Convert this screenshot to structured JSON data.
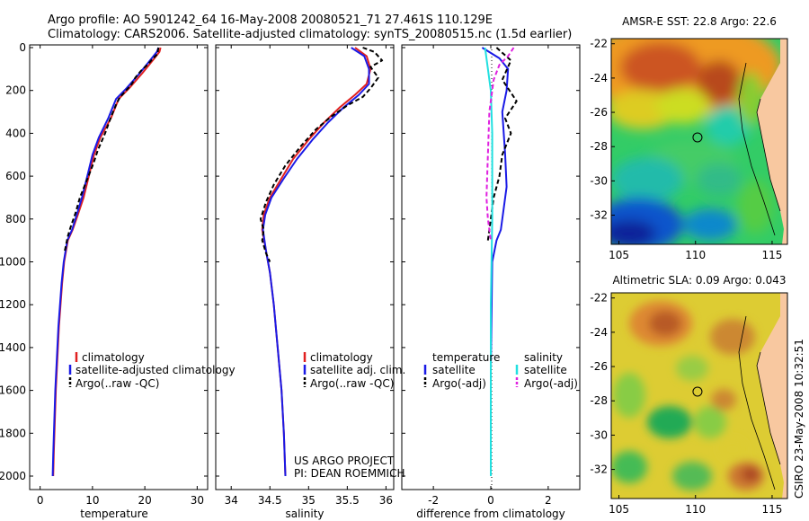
{
  "header": {
    "line1": "Argo profile: AO 5901242_64 16-May-2008 20080521_71 27.461S 110.129E",
    "line2": "Climatology: CARS2006. Satellite-adjusted climatology: synTS_20080515.nc (1.5d earlier)"
  },
  "colors": {
    "climatology": "#e02020",
    "satellite": "#1a1ae6",
    "argo": "#000000",
    "sal_satellite": "#22e0e0",
    "sal_argo": "#e020e0",
    "land": "#f8c8a0",
    "coast_band": "#e6e600"
  },
  "chart_data": [
    {
      "type": "line",
      "name": "temperature-profile",
      "xlabel": "temperature",
      "xlim": [
        -2,
        32
      ],
      "ylim": [
        2050,
        0
      ],
      "y_reversed": true,
      "xticks": [
        "0",
        "10",
        "20",
        "30"
      ],
      "xtick_values": [
        0,
        10,
        20,
        30
      ],
      "yticks": [
        "0",
        "200",
        "400",
        "600",
        "800",
        "1000",
        "1200",
        "1400",
        "1600",
        "1800",
        "2000"
      ],
      "ytick_values": [
        0,
        200,
        400,
        600,
        800,
        1000,
        1200,
        1400,
        1600,
        1800,
        2000
      ],
      "legend": [
        "climatology",
        "satellite-adjusted climatology",
        "Argo(..raw -QC)"
      ],
      "series": [
        {
          "name": "climatology",
          "color": "#e02020",
          "dash": "",
          "x": [
            23,
            22.8,
            21.5,
            19.5,
            17,
            15,
            13.5,
            11.5,
            10.3,
            9.3,
            8.3,
            7.2,
            6.2,
            5.3,
            4.6,
            4.2,
            3.6,
            3.0,
            2.6,
            2.5
          ],
          "y": [
            0,
            20,
            60,
            120,
            190,
            240,
            330,
            420,
            500,
            600,
            700,
            780,
            850,
            900,
            1000,
            1100,
            1300,
            1600,
            1900,
            2000
          ]
        },
        {
          "name": "satellite-adjusted climatology",
          "color": "#1a1ae6",
          "dash": "",
          "x": [
            22.6,
            22.3,
            21,
            19,
            16.5,
            14.5,
            13,
            11.2,
            10.0,
            9.0,
            8.0,
            7.0,
            6.1,
            5.2,
            4.5,
            4.1,
            3.5,
            2.9,
            2.5,
            2.4
          ],
          "y": [
            0,
            20,
            60,
            120,
            190,
            240,
            330,
            420,
            500,
            600,
            700,
            780,
            850,
            900,
            1000,
            1100,
            1300,
            1600,
            1900,
            2000
          ]
        },
        {
          "name": "Argo(..raw -QC)",
          "color": "#000000",
          "dash": "5,3",
          "x": [
            22.6,
            22.4,
            21.6,
            20.5,
            19.2,
            18.2,
            17.5,
            16.8,
            15.3,
            14.6,
            13.6,
            12.4,
            11.0,
            10.2,
            8.9,
            7.6,
            6.8,
            5.8,
            5.3,
            4.7
          ],
          "y": [
            0,
            30,
            50,
            80,
            110,
            140,
            170,
            190,
            230,
            260,
            320,
            400,
            480,
            540,
            620,
            700,
            770,
            840,
            880,
            950
          ]
        }
      ]
    },
    {
      "type": "line",
      "name": "salinity-profile",
      "xlabel": "salinity",
      "xlim": [
        33.8,
        36.1
      ],
      "ylim": [
        2050,
        0
      ],
      "y_reversed": true,
      "xticks": [
        "34",
        "34.5",
        "35",
        "35.5",
        "36"
      ],
      "xtick_values": [
        34,
        34.5,
        35,
        35.5,
        36
      ],
      "legend": [
        "climatology",
        "satellite adj. clim.",
        "Argo(..raw -QC)"
      ],
      "annotation": [
        "US ARGO PROJECT",
        "PI: DEAN ROEMMICH"
      ],
      "series": [
        {
          "name": "climatology",
          "color": "#e02020",
          "dash": "",
          "x": [
            35.6,
            35.75,
            35.8,
            35.75,
            35.6,
            35.4,
            35.2,
            35.0,
            34.8,
            34.65,
            34.5,
            34.42,
            34.4,
            34.45,
            34.5,
            34.55,
            34.6,
            34.65,
            34.68,
            34.7
          ],
          "y": [
            0,
            40,
            100,
            170,
            220,
            280,
            350,
            430,
            520,
            610,
            700,
            780,
            850,
            950,
            1050,
            1200,
            1400,
            1600,
            1800,
            2000
          ]
        },
        {
          "name": "satellite adj. clim.",
          "color": "#1a1ae6",
          "dash": "",
          "x": [
            35.55,
            35.72,
            35.78,
            35.78,
            35.65,
            35.45,
            35.25,
            35.05,
            34.85,
            34.68,
            34.52,
            34.44,
            34.41,
            34.45,
            34.5,
            34.55,
            34.6,
            34.65,
            34.68,
            34.7
          ],
          "y": [
            0,
            40,
            100,
            170,
            220,
            280,
            350,
            430,
            520,
            610,
            700,
            780,
            850,
            950,
            1050,
            1200,
            1400,
            1600,
            1800,
            2000
          ]
        },
        {
          "name": "Argo(..raw -QC)",
          "color": "#000000",
          "dash": "5,3",
          "x": [
            35.7,
            35.85,
            35.95,
            35.8,
            35.9,
            35.8,
            35.7,
            35.5,
            35.3,
            35.1,
            34.9,
            34.7,
            34.55,
            34.45,
            34.38,
            34.42,
            34.4,
            34.45,
            34.5
          ],
          "y": [
            0,
            20,
            60,
            90,
            140,
            190,
            230,
            270,
            320,
            380,
            460,
            550,
            640,
            720,
            800,
            850,
            900,
            960,
            1000
          ]
        }
      ]
    },
    {
      "type": "line",
      "name": "difference-from-climatology",
      "xlabel": "difference from climatology",
      "xlim": [
        -3.1,
        3.1
      ],
      "ylim": [
        2050,
        0
      ],
      "y_reversed": true,
      "xticks": [
        "-2",
        "0",
        "2"
      ],
      "xtick_values": [
        -2,
        0,
        2
      ],
      "legend": {
        "temperature_heading": "temperature",
        "salinity_heading": "salinity",
        "items": [
          "satellite",
          "Argo(-adj)",
          "satellite",
          "Argo(-adj)"
        ]
      },
      "series": [
        {
          "name": "temperature satellite",
          "color": "#1a1ae6",
          "dash": "",
          "x": [
            -0.3,
            0.3,
            0.6,
            0.55,
            0.4,
            0.5,
            0.55,
            0.45,
            0.35,
            0.2,
            0.05,
            0.0,
            0.0
          ],
          "y": [
            0,
            50,
            100,
            200,
            300,
            500,
            650,
            750,
            850,
            900,
            1000,
            1500,
            2000
          ]
        },
        {
          "name": "temperature Argo(-adj)",
          "color": "#000000",
          "dash": "5,3",
          "x": [
            0.2,
            0.7,
            0.4,
            0.9,
            0.5,
            0.7,
            0.4,
            0.3,
            0.1,
            0.0,
            -0.1
          ],
          "y": [
            0,
            60,
            150,
            250,
            330,
            400,
            500,
            600,
            700,
            800,
            900
          ]
        },
        {
          "name": "salinity satellite",
          "color": "#22e0e0",
          "dash": "",
          "x": [
            -0.2,
            -0.1,
            0.0,
            0.05,
            0.05,
            0.0,
            0.0
          ],
          "y": [
            0,
            100,
            200,
            400,
            800,
            1200,
            2000
          ]
        },
        {
          "name": "salinity Argo(-adj)",
          "color": "#e020e0",
          "dash": "5,3",
          "x": [
            0.8,
            0.6,
            0.3,
            0.1,
            -0.05,
            -0.15,
            -0.1,
            0.0
          ],
          "y": [
            0,
            40,
            80,
            150,
            300,
            700,
            800,
            900
          ]
        }
      ]
    },
    {
      "type": "heatmap",
      "name": "amsr-e-sst-map",
      "title": "AMSR-E SST: 22.8 Argo: 22.6",
      "xlim": [
        104.5,
        116
      ],
      "ylim": [
        -33.7,
        -21.7
      ],
      "xticks": [
        "105",
        "110",
        "115"
      ],
      "xtick_values": [
        105,
        110,
        115
      ],
      "yticks": [
        "-22",
        "-24",
        "-26",
        "-28",
        "-30",
        "-32"
      ],
      "ytick_values": [
        -22,
        -24,
        -26,
        -28,
        -30,
        -32
      ],
      "float_position": {
        "lon": 110.129,
        "lat": -27.461
      }
    },
    {
      "type": "heatmap",
      "name": "altimetric-sla-map",
      "title": "Altimetric SLA: 0.09 Argo: 0.043",
      "xlim": [
        104.5,
        116
      ],
      "ylim": [
        -33.7,
        -21.7
      ],
      "xticks": [
        "105",
        "110",
        "115"
      ],
      "xtick_values": [
        105,
        110,
        115
      ],
      "yticks": [
        "-22",
        "-24",
        "-26",
        "-28",
        "-30",
        "-32"
      ],
      "ytick_values": [
        -22,
        -24,
        -26,
        -28,
        -30,
        -32
      ],
      "float_position": {
        "lon": 110.129,
        "lat": -27.461
      }
    }
  ],
  "side_label": "CSIRO 23-May-2008 10:32:51"
}
